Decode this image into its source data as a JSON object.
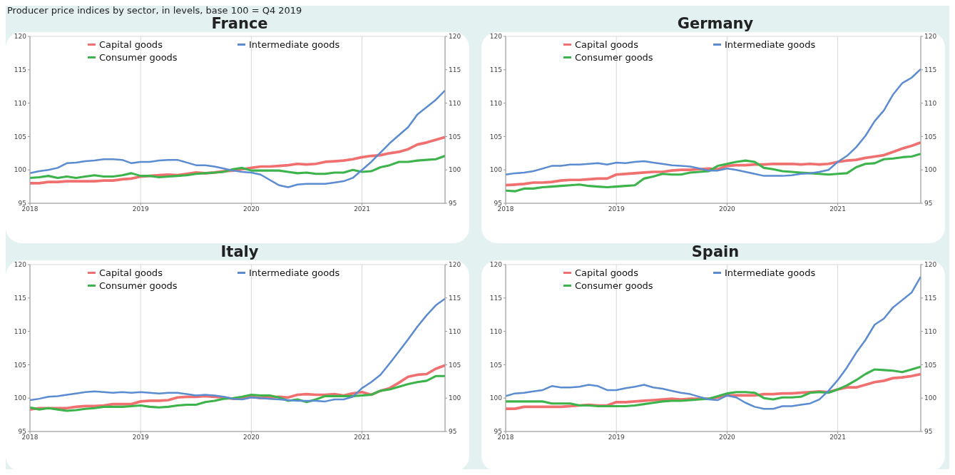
{
  "chart_data": [
    {
      "type": "line",
      "title": "France",
      "annotations": [
        "Producer price indices by sector, in levels, base 100 = Q4 2019"
      ],
      "legend": "top left",
      "grid": true,
      "line_style": "solid",
      "marker": "none",
      "x": [
        "2018-01",
        "2018-02",
        "2018-03",
        "2018-04",
        "2018-05",
        "2018-06",
        "2018-07",
        "2018-08",
        "2018-09",
        "2018-10",
        "2018-11",
        "2018-12",
        "2019-01",
        "2019-02",
        "2019-03",
        "2019-04",
        "2019-05",
        "2019-06",
        "2019-07",
        "2019-08",
        "2019-09",
        "2019-10",
        "2019-11",
        "2019-12",
        "2020-01",
        "2020-02",
        "2020-03",
        "2020-04",
        "2020-05",
        "2020-06",
        "2020-07",
        "2020-08",
        "2020-09",
        "2020-10",
        "2020-11",
        "2020-12",
        "2021-01",
        "2021-02",
        "2021-03",
        "2021-04",
        "2021-05",
        "2021-06",
        "2021-07",
        "2021-08",
        "2021-09",
        "2021-10"
      ],
      "xlim": [
        "2018-01",
        "2021-10"
      ],
      "xticks": [
        "2018",
        "2019",
        "2020",
        "2021"
      ],
      "ylim": [
        95,
        120
      ],
      "yticks": [
        95,
        100,
        105,
        110,
        115,
        120
      ],
      "y2lim": [
        95,
        120
      ],
      "y2ticks": [
        95,
        100,
        105,
        110,
        115,
        120
      ],
      "series": [
        {
          "name": "Capital goods",
          "color": "#f07070",
          "values": [
            98.0,
            98.0,
            98.2,
            98.2,
            98.3,
            98.3,
            98.3,
            98.3,
            98.4,
            98.4,
            98.6,
            98.7,
            99.0,
            99.1,
            99.2,
            99.3,
            99.2,
            99.4,
            99.6,
            99.5,
            99.6,
            99.8,
            99.9,
            100.1,
            100.3,
            100.5,
            100.5,
            100.6,
            100.7,
            100.9,
            100.8,
            100.9,
            101.2,
            101.3,
            101.4,
            101.6,
            101.9,
            102.1,
            102.2,
            102.5,
            102.7,
            103.1,
            103.8,
            104.1,
            104.5,
            104.9
          ]
        },
        {
          "name": "Consumer goods",
          "color": "#3cb44b",
          "values": [
            98.8,
            98.9,
            99.1,
            98.8,
            99.0,
            98.8,
            99.0,
            99.2,
            99.0,
            99.0,
            99.2,
            99.5,
            99.1,
            99.1,
            98.9,
            99.0,
            99.1,
            99.2,
            99.4,
            99.5,
            99.6,
            99.7,
            100.1,
            100.3,
            99.9,
            99.9,
            99.9,
            99.9,
            99.7,
            99.5,
            99.6,
            99.4,
            99.4,
            99.6,
            99.6,
            100.0,
            99.7,
            99.8,
            100.4,
            100.7,
            101.2,
            101.2,
            101.4,
            101.5,
            101.6,
            102.1
          ]
        },
        {
          "name": "Intermediate goods",
          "color": "#5b8bd0",
          "values": [
            99.5,
            99.8,
            100.0,
            100.3,
            101.0,
            101.1,
            101.3,
            101.4,
            101.6,
            101.6,
            101.5,
            101.0,
            101.2,
            101.2,
            101.4,
            101.5,
            101.5,
            101.1,
            100.7,
            100.7,
            100.5,
            100.2,
            99.9,
            99.7,
            99.6,
            99.3,
            98.5,
            97.7,
            97.4,
            97.8,
            97.9,
            97.9,
            97.9,
            98.1,
            98.3,
            98.8,
            100.0,
            101.2,
            102.6,
            104.0,
            105.2,
            106.4,
            108.3,
            109.4,
            110.5,
            111.9
          ]
        }
      ]
    },
    {
      "type": "line",
      "title": "Germany",
      "legend": "top left",
      "grid": true,
      "line_style": "solid",
      "marker": "none",
      "x": [
        "2018-01",
        "2018-02",
        "2018-03",
        "2018-04",
        "2018-05",
        "2018-06",
        "2018-07",
        "2018-08",
        "2018-09",
        "2018-10",
        "2018-11",
        "2018-12",
        "2019-01",
        "2019-02",
        "2019-03",
        "2019-04",
        "2019-05",
        "2019-06",
        "2019-07",
        "2019-08",
        "2019-09",
        "2019-10",
        "2019-11",
        "2019-12",
        "2020-01",
        "2020-02",
        "2020-03",
        "2020-04",
        "2020-05",
        "2020-06",
        "2020-07",
        "2020-08",
        "2020-09",
        "2020-10",
        "2020-11",
        "2020-12",
        "2021-01",
        "2021-02",
        "2021-03",
        "2021-04",
        "2021-05",
        "2021-06",
        "2021-07",
        "2021-08",
        "2021-09",
        "2021-10"
      ],
      "xlim": [
        "2018-01",
        "2021-10"
      ],
      "xticks": [
        "2018",
        "2019",
        "2020",
        "2021"
      ],
      "ylim": [
        95,
        120
      ],
      "yticks": [
        95,
        100,
        105,
        110,
        115,
        120
      ],
      "y2lim": [
        95,
        120
      ],
      "y2ticks": [
        95,
        100,
        105,
        110,
        115,
        120
      ],
      "series": [
        {
          "name": "Capital goods",
          "color": "#f07070",
          "values": [
            97.7,
            97.8,
            97.9,
            98.1,
            98.1,
            98.2,
            98.4,
            98.5,
            98.5,
            98.6,
            98.7,
            98.7,
            99.3,
            99.4,
            99.5,
            99.6,
            99.7,
            99.7,
            99.9,
            100.0,
            100.0,
            100.1,
            100.2,
            100.1,
            100.6,
            100.7,
            100.7,
            100.8,
            100.8,
            100.9,
            100.9,
            100.9,
            100.8,
            100.9,
            100.8,
            100.9,
            101.2,
            101.4,
            101.5,
            101.8,
            102.0,
            102.2,
            102.7,
            103.2,
            103.6,
            104.1
          ]
        },
        {
          "name": "Consumer goods",
          "color": "#3cb44b",
          "values": [
            96.9,
            96.8,
            97.2,
            97.2,
            97.4,
            97.5,
            97.6,
            97.7,
            97.8,
            97.6,
            97.5,
            97.4,
            97.5,
            97.6,
            97.7,
            98.7,
            99.0,
            99.4,
            99.3,
            99.3,
            99.6,
            99.7,
            99.8,
            100.6,
            100.9,
            101.2,
            101.4,
            101.2,
            100.3,
            100.1,
            99.8,
            99.7,
            99.6,
            99.5,
            99.4,
            99.3,
            99.4,
            99.5,
            100.4,
            100.9,
            101.0,
            101.6,
            101.7,
            101.9,
            102.0,
            102.4
          ]
        },
        {
          "name": "Intermediate goods",
          "color": "#5b8bd0",
          "values": [
            99.3,
            99.5,
            99.6,
            99.8,
            100.2,
            100.6,
            100.6,
            100.8,
            100.8,
            100.9,
            101.0,
            100.8,
            101.1,
            101.0,
            101.2,
            101.3,
            101.1,
            100.9,
            100.7,
            100.6,
            100.5,
            100.2,
            99.9,
            99.9,
            100.2,
            100.0,
            99.7,
            99.4,
            99.1,
            99.1,
            99.1,
            99.2,
            99.4,
            99.5,
            99.7,
            100.0,
            101.2,
            102.1,
            103.4,
            105.1,
            107.3,
            108.9,
            111.3,
            113.0,
            113.8,
            115.1
          ]
        }
      ]
    },
    {
      "type": "line",
      "title": "Italy",
      "legend": "top left",
      "grid": true,
      "line_style": "solid",
      "marker": "none",
      "x": [
        "2018-01",
        "2018-02",
        "2018-03",
        "2018-04",
        "2018-05",
        "2018-06",
        "2018-07",
        "2018-08",
        "2018-09",
        "2018-10",
        "2018-11",
        "2018-12",
        "2019-01",
        "2019-02",
        "2019-03",
        "2019-04",
        "2019-05",
        "2019-06",
        "2019-07",
        "2019-08",
        "2019-09",
        "2019-10",
        "2019-11",
        "2019-12",
        "2020-01",
        "2020-02",
        "2020-03",
        "2020-04",
        "2020-05",
        "2020-06",
        "2020-07",
        "2020-08",
        "2020-09",
        "2020-10",
        "2020-11",
        "2020-12",
        "2021-01",
        "2021-02",
        "2021-03",
        "2021-04",
        "2021-05",
        "2021-06",
        "2021-07",
        "2021-08",
        "2021-09",
        "2021-10"
      ],
      "xlim": [
        "2018-01",
        "2021-10"
      ],
      "xticks": [
        "2018",
        "2019",
        "2020",
        "2021"
      ],
      "ylim": [
        95,
        120
      ],
      "yticks": [
        95,
        100,
        105,
        110,
        115,
        120
      ],
      "y2lim": [
        95,
        120
      ],
      "y2ticks": [
        95,
        100,
        105,
        110,
        115,
        120
      ],
      "series": [
        {
          "name": "Capital goods",
          "color": "#f07070",
          "values": [
            98.3,
            98.5,
            98.5,
            98.5,
            98.5,
            98.7,
            98.8,
            98.8,
            98.9,
            99.1,
            99.1,
            99.1,
            99.5,
            99.6,
            99.6,
            99.7,
            100.1,
            100.2,
            100.2,
            100.3,
            100.2,
            100.1,
            99.9,
            99.9,
            100.2,
            100.0,
            100.1,
            100.2,
            100.1,
            100.5,
            100.6,
            100.5,
            100.5,
            100.6,
            100.4,
            100.7,
            100.9,
            100.5,
            101.1,
            101.5,
            102.3,
            103.2,
            103.5,
            103.6,
            104.4,
            104.9
          ]
        },
        {
          "name": "Consumer goods",
          "color": "#3cb44b",
          "values": [
            98.6,
            98.3,
            98.5,
            98.3,
            98.1,
            98.2,
            98.4,
            98.5,
            98.7,
            98.7,
            98.7,
            98.8,
            98.9,
            98.7,
            98.6,
            98.7,
            98.9,
            99.0,
            99.0,
            99.4,
            99.6,
            99.9,
            100.0,
            100.2,
            100.5,
            100.4,
            100.4,
            100.1,
            99.6,
            99.8,
            99.4,
            99.8,
            100.3,
            100.3,
            100.3,
            100.3,
            100.4,
            100.5,
            101.1,
            101.3,
            101.7,
            102.1,
            102.4,
            102.6,
            103.3,
            103.3
          ]
        },
        {
          "name": "Intermediate goods",
          "color": "#5b8bd0",
          "values": [
            99.7,
            99.9,
            100.2,
            100.3,
            100.5,
            100.7,
            100.9,
            101.0,
            100.9,
            100.8,
            100.9,
            100.8,
            100.9,
            100.8,
            100.7,
            100.8,
            100.8,
            100.6,
            100.4,
            100.5,
            100.4,
            100.2,
            99.9,
            99.8,
            100.1,
            100.0,
            99.9,
            99.8,
            99.7,
            99.6,
            99.6,
            99.6,
            99.5,
            99.8,
            99.8,
            100.2,
            101.5,
            102.4,
            103.5,
            105.2,
            107.0,
            108.8,
            110.7,
            112.4,
            113.9,
            114.9
          ]
        }
      ]
    },
    {
      "type": "line",
      "title": "Spain",
      "legend": "top left",
      "grid": true,
      "line_style": "solid",
      "marker": "none",
      "x": [
        "2018-01",
        "2018-02",
        "2018-03",
        "2018-04",
        "2018-05",
        "2018-06",
        "2018-07",
        "2018-08",
        "2018-09",
        "2018-10",
        "2018-11",
        "2018-12",
        "2019-01",
        "2019-02",
        "2019-03",
        "2019-04",
        "2019-05",
        "2019-06",
        "2019-07",
        "2019-08",
        "2019-09",
        "2019-10",
        "2019-11",
        "2019-12",
        "2020-01",
        "2020-02",
        "2020-03",
        "2020-04",
        "2020-05",
        "2020-06",
        "2020-07",
        "2020-08",
        "2020-09",
        "2020-10",
        "2020-11",
        "2020-12",
        "2021-01",
        "2021-02",
        "2021-03",
        "2021-04",
        "2021-05",
        "2021-06",
        "2021-07",
        "2021-08",
        "2021-09",
        "2021-10"
      ],
      "xlim": [
        "2018-01",
        "2021-10"
      ],
      "xticks": [
        "2018",
        "2019",
        "2020",
        "2021"
      ],
      "ylim": [
        95,
        120
      ],
      "yticks": [
        95,
        100,
        105,
        110,
        115,
        120
      ],
      "y2lim": [
        95,
        120
      ],
      "y2ticks": [
        95,
        100,
        105,
        110,
        115,
        120
      ],
      "series": [
        {
          "name": "Capital goods",
          "color": "#f07070",
          "values": [
            98.4,
            98.4,
            98.7,
            98.7,
            98.7,
            98.7,
            98.7,
            98.8,
            98.9,
            99.0,
            98.9,
            98.9,
            99.4,
            99.4,
            99.5,
            99.6,
            99.7,
            99.8,
            99.9,
            99.8,
            99.9,
            99.9,
            99.9,
            100.1,
            100.4,
            100.4,
            100.4,
            100.4,
            100.6,
            100.6,
            100.7,
            100.7,
            100.8,
            100.9,
            101.0,
            100.9,
            101.3,
            101.6,
            101.6,
            102.0,
            102.4,
            102.6,
            103.0,
            103.1,
            103.3,
            103.6
          ]
        },
        {
          "name": "Consumer goods",
          "color": "#3cb44b",
          "values": [
            99.5,
            99.5,
            99.5,
            99.5,
            99.5,
            99.2,
            99.2,
            99.2,
            98.9,
            98.9,
            98.8,
            98.8,
            98.8,
            98.8,
            98.9,
            99.1,
            99.3,
            99.5,
            99.6,
            99.6,
            99.7,
            99.8,
            99.9,
            100.3,
            100.7,
            100.9,
            100.9,
            100.8,
            100.0,
            99.8,
            100.1,
            100.1,
            100.2,
            100.8,
            100.9,
            100.8,
            101.3,
            101.9,
            102.7,
            103.6,
            104.3,
            104.2,
            104.1,
            103.9,
            104.3,
            104.7
          ]
        },
        {
          "name": "Intermediate goods",
          "color": "#5b8bd0",
          "values": [
            100.3,
            100.7,
            100.8,
            101.0,
            101.2,
            101.8,
            101.6,
            101.6,
            101.7,
            102.0,
            101.8,
            101.2,
            101.2,
            101.5,
            101.7,
            102.0,
            101.6,
            101.4,
            101.1,
            100.8,
            100.6,
            100.2,
            99.8,
            99.7,
            100.4,
            100.1,
            99.3,
            98.7,
            98.4,
            98.4,
            98.8,
            98.8,
            99.0,
            99.2,
            99.8,
            101.1,
            102.7,
            104.6,
            106.8,
            108.7,
            111.0,
            111.9,
            113.6,
            114.7,
            115.8,
            118.2
          ]
        }
      ]
    }
  ]
}
